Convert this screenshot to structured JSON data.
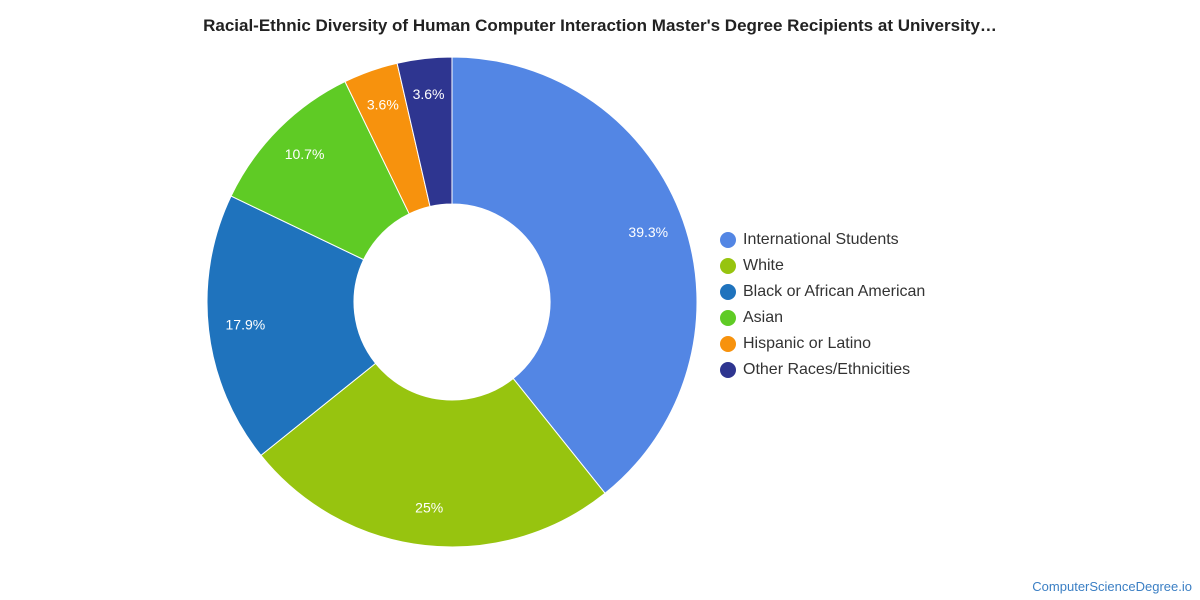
{
  "chart_data": {
    "type": "pie",
    "title": "Racial-Ethnic Diversity of Human Computer Interaction Master's Degree Recipients at University…",
    "donut": true,
    "legend_position": "right",
    "slices": [
      {
        "name": "International Students",
        "value": 39.3,
        "label": "39.3%",
        "color": "#5386e4"
      },
      {
        "name": "White",
        "value": 25.0,
        "label": "25%",
        "color": "#97c40f"
      },
      {
        "name": "Black or African American",
        "value": 17.9,
        "label": "17.9%",
        "color": "#1f73bd"
      },
      {
        "name": "Asian",
        "value": 10.7,
        "label": "10.7%",
        "color": "#5fcb25"
      },
      {
        "name": "Hispanic or Latino",
        "value": 3.6,
        "label": "3.6%",
        "color": "#f7920d"
      },
      {
        "name": "Other Races/Ethnicities",
        "value": 3.6,
        "label": "3.6%",
        "color": "#2e3590"
      }
    ]
  },
  "source_label": "ComputerScienceDegree.io"
}
